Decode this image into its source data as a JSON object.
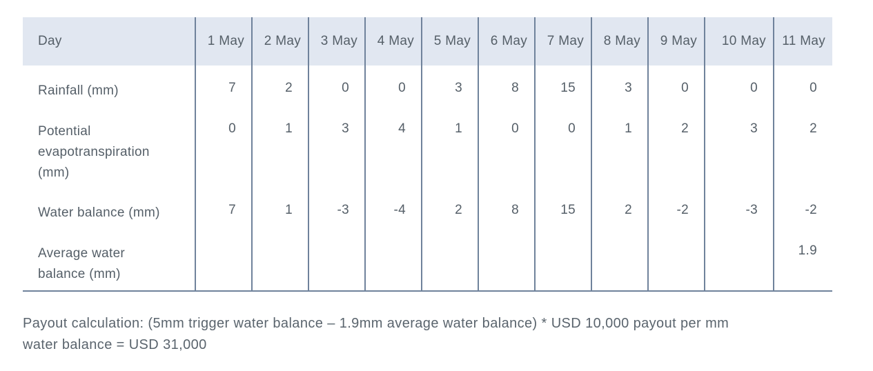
{
  "colors": {
    "header_background": "#e1e7f1",
    "grid_line": "#6f829b",
    "text": "#555f68",
    "page_background": "#ffffff"
  },
  "chart_data": {
    "type": "table",
    "columns": [
      "Day",
      "1 May",
      "2 May",
      "3 May",
      "4 May",
      "5 May",
      "6 May",
      "7 May",
      "8 May",
      "9 May",
      "10 May",
      "11 May"
    ],
    "rows": [
      {
        "label": "Rainfall (mm)",
        "values": [
          7,
          2,
          0,
          0,
          3,
          8,
          15,
          3,
          0,
          0,
          0
        ]
      },
      {
        "label": "Potential evapotranspiration (mm)",
        "values": [
          0,
          1,
          3,
          4,
          1,
          0,
          0,
          1,
          2,
          3,
          2
        ]
      },
      {
        "label": "Water balance (mm)",
        "values": [
          7,
          1,
          -3,
          -4,
          2,
          8,
          15,
          2,
          -2,
          -3,
          -2
        ]
      },
      {
        "label": "Average water balance (mm)",
        "values": [
          "",
          "",
          "",
          "",
          "",
          "",
          "",
          "",
          "",
          "",
          1.9
        ]
      }
    ],
    "notes": "Average water balance over 1-11 May is 1.9 mm, shown only in the 11 May column"
  },
  "caption": {
    "line1": "Payout calculation: (5mm trigger water balance – 1.9mm average water balance) * USD 10,000 payout per mm",
    "line2": "water balance = USD 31,000"
  }
}
